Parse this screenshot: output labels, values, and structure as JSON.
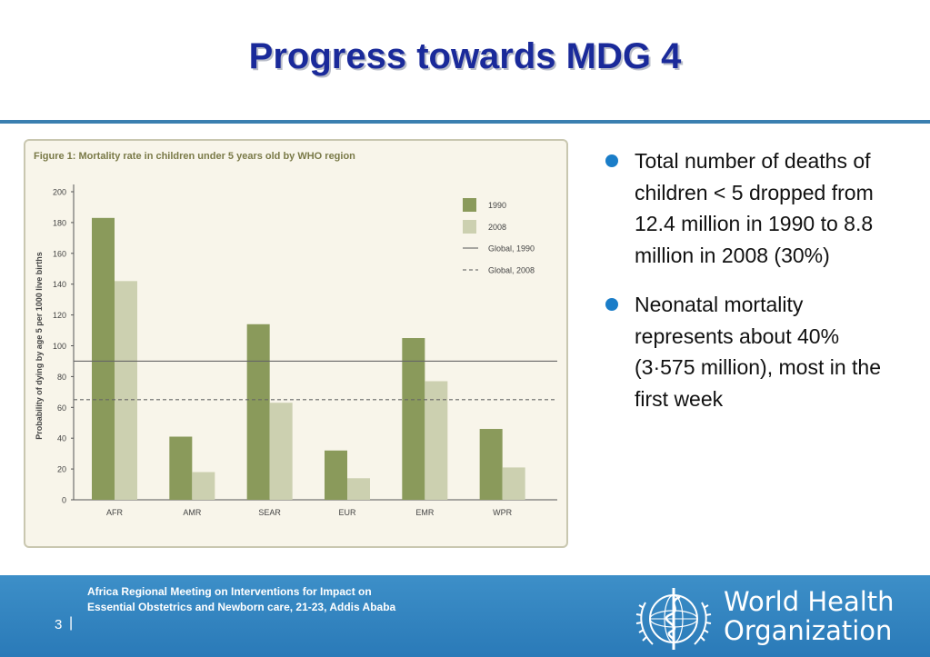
{
  "slide": {
    "title": "Progress towards MDG 4"
  },
  "figure": {
    "title": "Figure 1: Mortality rate in children under 5 years old by WHO region"
  },
  "chart_data": {
    "type": "bar",
    "title": "Figure 1: Mortality rate in children under 5 years old by WHO region",
    "xlabel": "",
    "ylabel": "Probability of dying by age 5 per 1000 live births",
    "categories": [
      "AFR",
      "AMR",
      "SEAR",
      "EUR",
      "EMR",
      "WPR"
    ],
    "series": [
      {
        "name": "1990",
        "values": [
          183,
          41,
          114,
          32,
          105,
          46
        ],
        "color": "#8a9a5b"
      },
      {
        "name": "2008",
        "values": [
          142,
          18,
          63,
          14,
          77,
          21
        ],
        "color": "#ccd0b0"
      }
    ],
    "reference_lines": [
      {
        "name": "Global, 1990",
        "value": 90,
        "style": "solid"
      },
      {
        "name": "Global, 2008",
        "value": 65,
        "style": "dashed"
      }
    ],
    "yticks": [
      0,
      20,
      40,
      60,
      80,
      100,
      120,
      140,
      160,
      180,
      200
    ],
    "ylim": [
      0,
      200
    ],
    "legend_position": "top-right",
    "grid": false
  },
  "bullets": [
    "Total number of deaths of children < 5 dropped from 12.4 million in 1990 to 8.8 million in 2008 (30%)",
    "Neonatal mortality represents about 40% (3·575 million), most in the first week"
  ],
  "footer": {
    "page_number": "3",
    "separator": "|",
    "meeting_text": "Africa Regional Meeting on Interventions for Impact on Essential Obstetrics and Newborn care, 21-23, Addis Ababa",
    "org_name_line1": "World Health",
    "org_name_line2": "Organization"
  },
  "colors": {
    "title": "#1a2a9a",
    "accent": "#3a7fb0",
    "bullet": "#1a7dc8",
    "series_1990": "#8a9a5b",
    "series_2008": "#ccd0b0"
  }
}
